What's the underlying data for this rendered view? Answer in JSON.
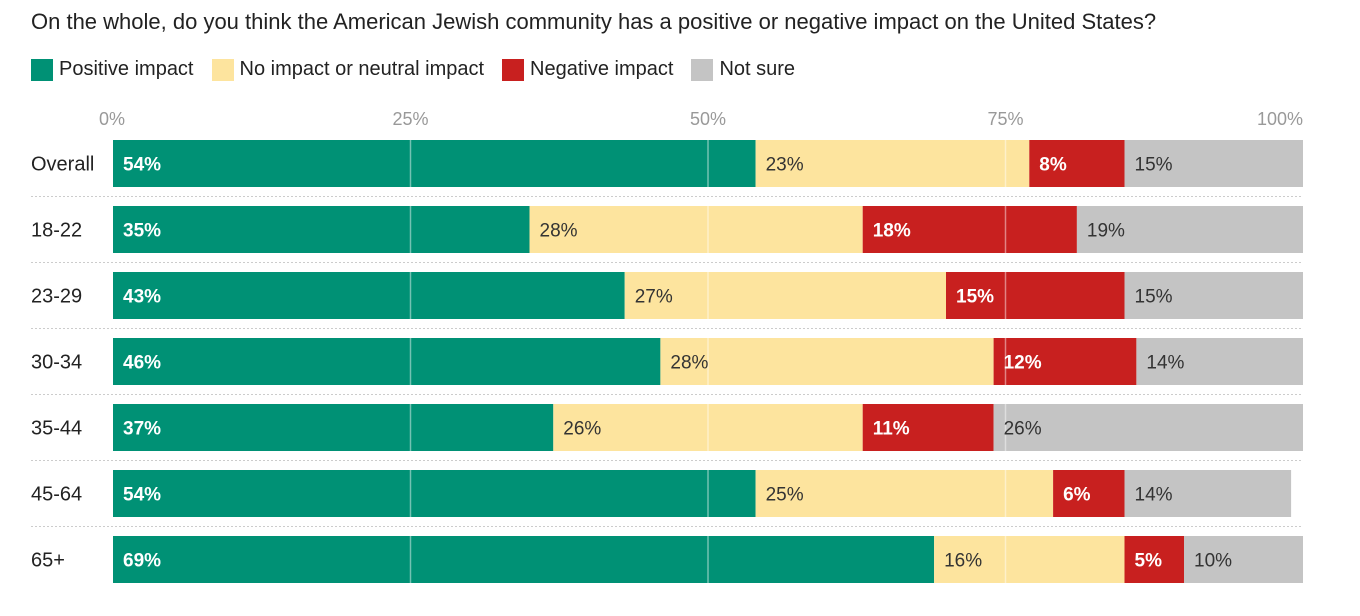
{
  "chart_data": {
    "type": "bar",
    "orientation": "horizontal",
    "stacked": true,
    "title": "On the whole, do you think the American Jewish community has a positive or negative impact on the United States?",
    "legend_position": "top-left",
    "xlim": [
      0,
      100
    ],
    "x_ticks": [
      "0%",
      "25%",
      "50%",
      "75%",
      "100%"
    ],
    "grid": true,
    "categories": [
      "Overall",
      "18-22",
      "23-29",
      "30-34",
      "35-44",
      "45-64",
      "65+"
    ],
    "series": [
      {
        "name": "Positive impact",
        "color": "#009175",
        "label_color": "#ffffff",
        "values": [
          54,
          35,
          43,
          46,
          37,
          54,
          69
        ]
      },
      {
        "name": "No impact or neutral impact",
        "color": "#fde49e",
        "label_color": "#333333",
        "values": [
          23,
          28,
          27,
          28,
          26,
          25,
          16
        ]
      },
      {
        "name": "Negative impact",
        "color": "#c8201f",
        "label_color": "#ffffff",
        "values": [
          8,
          18,
          15,
          12,
          11,
          6,
          5
        ]
      },
      {
        "name": "Not sure",
        "color": "#c4c4c4",
        "label_color": "#333333",
        "values": [
          15,
          19,
          15,
          14,
          26,
          14,
          10
        ]
      }
    ]
  }
}
